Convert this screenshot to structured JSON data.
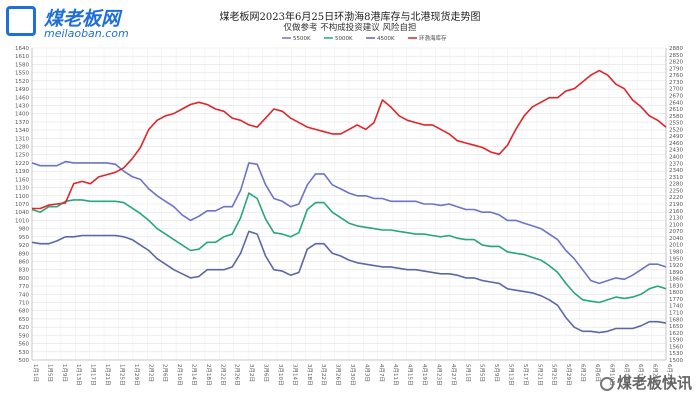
{
  "logo": {
    "cn": "煤老板网",
    "url": "meilaoban.com"
  },
  "watermark": "煤老板快讯",
  "chart_data": {
    "type": "line",
    "title": "煤老板网2023年6月25日环渤海8港库存与北港现货走势图",
    "subtitle": "仅做参考 不构成投资建议 风险自担",
    "y_left": {
      "min": 500,
      "max": 1640,
      "step": 30
    },
    "y_right": {
      "min": 1500,
      "max": 2880,
      "step": 30
    },
    "series": [
      {
        "name": "5500K",
        "axis": "left",
        "color": "#6b74c6",
        "values": [
          1220,
          1210,
          1210,
          1210,
          1225,
          1220,
          1220,
          1220,
          1220,
          1220,
          1215,
          1190,
          1170,
          1160,
          1125,
          1100,
          1080,
          1060,
          1030,
          1010,
          1025,
          1045,
          1045,
          1060,
          1060,
          1120,
          1220,
          1215,
          1140,
          1090,
          1080,
          1060,
          1070,
          1140,
          1180,
          1180,
          1140,
          1125,
          1110,
          1100,
          1100,
          1090,
          1090,
          1080,
          1080,
          1080,
          1080,
          1070,
          1070,
          1065,
          1070,
          1060,
          1050,
          1050,
          1040,
          1040,
          1030,
          1010,
          1010,
          1000,
          990,
          980,
          960,
          940,
          900,
          870,
          830,
          790,
          780,
          790,
          800,
          795,
          810,
          830,
          850,
          850,
          840
        ]
      },
      {
        "name": "5000K",
        "axis": "left",
        "color": "#27a87a",
        "values": [
          1050,
          1040,
          1060,
          1060,
          1080,
          1085,
          1085,
          1080,
          1080,
          1080,
          1080,
          1075,
          1055,
          1035,
          1010,
          980,
          960,
          940,
          920,
          900,
          905,
          930,
          930,
          950,
          960,
          1020,
          1110,
          1090,
          1015,
          965,
          960,
          950,
          965,
          1050,
          1075,
          1075,
          1040,
          1020,
          1000,
          990,
          985,
          980,
          975,
          975,
          970,
          965,
          960,
          960,
          955,
          950,
          955,
          945,
          940,
          940,
          920,
          915,
          915,
          895,
          890,
          885,
          875,
          865,
          845,
          820,
          780,
          745,
          720,
          715,
          710,
          720,
          730,
          725,
          730,
          740,
          760,
          770,
          760
        ]
      },
      {
        "name": "4500K",
        "axis": "left",
        "color": "#5a69a6",
        "values": [
          930,
          925,
          925,
          935,
          950,
          950,
          955,
          955,
          955,
          955,
          955,
          950,
          940,
          920,
          900,
          870,
          850,
          830,
          815,
          800,
          805,
          830,
          830,
          830,
          840,
          890,
          970,
          960,
          880,
          830,
          825,
          810,
          820,
          905,
          925,
          925,
          890,
          880,
          865,
          855,
          850,
          845,
          840,
          840,
          835,
          830,
          830,
          825,
          820,
          815,
          815,
          810,
          800,
          800,
          790,
          785,
          780,
          760,
          755,
          750,
          745,
          735,
          720,
          700,
          655,
          620,
          605,
          605,
          600,
          605,
          615,
          615,
          615,
          625,
          640,
          640,
          635
        ]
      },
      {
        "name": "环渤海库存",
        "axis": "right",
        "color": "#e0262b",
        "values": [
          2170,
          2170,
          2185,
          2190,
          2195,
          2280,
          2290,
          2280,
          2310,
          2320,
          2330,
          2350,
          2390,
          2440,
          2520,
          2560,
          2580,
          2590,
          2610,
          2630,
          2640,
          2630,
          2610,
          2600,
          2570,
          2560,
          2540,
          2530,
          2570,
          2610,
          2600,
          2570,
          2550,
          2530,
          2520,
          2510,
          2500,
          2500,
          2520,
          2540,
          2520,
          2550,
          2650,
          2620,
          2580,
          2560,
          2550,
          2540,
          2540,
          2520,
          2500,
          2470,
          2460,
          2450,
          2440,
          2420,
          2410,
          2450,
          2520,
          2580,
          2620,
          2640,
          2660,
          2660,
          2690,
          2700,
          2730,
          2760,
          2780,
          2760,
          2720,
          2700,
          2650,
          2620,
          2580,
          2560,
          2530
        ]
      }
    ],
    "x_labels": [
      "1月1日",
      "1月5日",
      "1月9日",
      "1月13日",
      "1月17日",
      "1月21日",
      "1月25日",
      "1月29日",
      "2月2日",
      "2月6日",
      "2月10日",
      "2月14日",
      "2月18日",
      "2月22日",
      "2月26日",
      "3月2日",
      "3月6日",
      "3月10日",
      "3月14日",
      "3月18日",
      "3月22日",
      "3月26日",
      "3月30日",
      "4月3日",
      "4月7日",
      "4月11日",
      "4月15日",
      "4月19日",
      "4月23日",
      "4月27日",
      "5月1日",
      "5月5日",
      "5月9日",
      "5月13日",
      "5月17日",
      "5月21日",
      "5月25日",
      "5月29日",
      "6月2日",
      "6月6日",
      "6月10日",
      "6月14日",
      "6月18日",
      "6月22日",
      "6月25日"
    ]
  }
}
